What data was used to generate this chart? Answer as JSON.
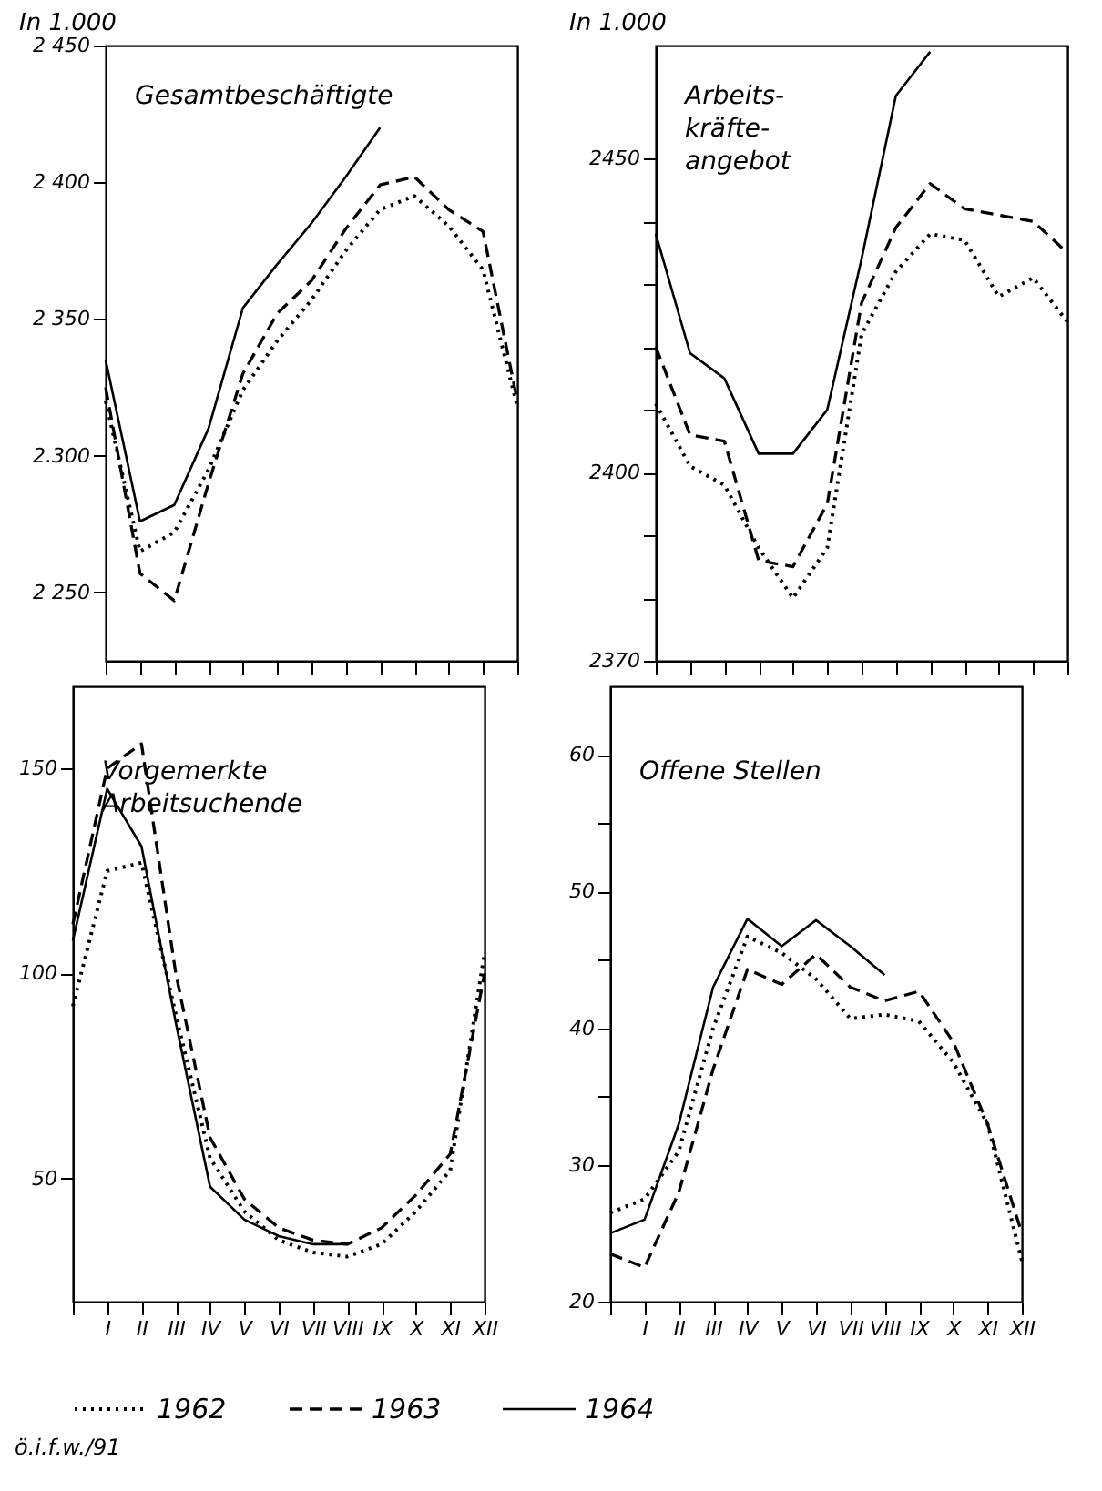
{
  "chart_data": [
    {
      "type": "line",
      "title": "Gesamtbeschäftigte",
      "ylabel": "In 1.000",
      "tick_labels": "y",
      "categories": [
        null,
        null,
        null,
        null,
        null,
        null,
        null,
        null,
        null,
        null,
        null,
        null,
        null
      ],
      "ylim": [
        2225,
        2450
      ],
      "yticks": [
        {
          "value": 2250,
          "label": "2 250"
        },
        {
          "value": 2300,
          "label": "2.300"
        },
        {
          "value": 2350,
          "label": "2 350"
        },
        {
          "value": 2400,
          "label": "2 400"
        },
        {
          "value": 2450,
          "label": "2 450"
        }
      ],
      "series": [
        {
          "color": "#000000",
          "line_style": "dotted",
          "values": [
            2320,
            2265,
            2272,
            2295,
            2324,
            2342,
            2357,
            2375,
            2390,
            2395,
            2384,
            2368,
            2318
          ]
        },
        {
          "color": "#000000",
          "line_style": "dashed",
          "values": [
            2325,
            2257,
            2247,
            2290,
            2330,
            2352,
            2364,
            2383,
            2399,
            2402,
            2390,
            2382,
            2320
          ]
        },
        {
          "color": "#000000",
          "line_style": "solid",
          "values": [
            2335,
            2276,
            2282,
            2310,
            2354,
            2370,
            2385,
            2402,
            2420,
            null,
            null,
            null,
            null
          ]
        }
      ]
    },
    {
      "type": "line",
      "title": "Arbeits-\nkräfte-\nangebot",
      "ylabel": "In 1.000",
      "tick_labels": "y",
      "categories": [
        null,
        null,
        null,
        null,
        null,
        null,
        null,
        null,
        null,
        null,
        null,
        null,
        null
      ],
      "ylim": [
        2370,
        2468
      ],
      "yticks": [
        2370,
        {
          "value": 2380,
          "label": null
        },
        {
          "value": 2390,
          "label": null
        },
        2400,
        {
          "value": 2410,
          "label": null
        },
        {
          "value": 2420,
          "label": null
        },
        {
          "value": 2430,
          "label": null
        },
        {
          "value": 2440,
          "label": null
        },
        2450
      ],
      "series": [
        {
          "color": "#000000",
          "line_style": "dotted",
          "values": [
            2411,
            2401,
            2398,
            2388,
            2380,
            2388,
            2422,
            2432,
            2438,
            2437,
            2428,
            2431,
            2424
          ]
        },
        {
          "color": "#000000",
          "line_style": "dashed",
          "values": [
            2420,
            2406,
            2405,
            2386,
            2385,
            2395,
            2427,
            2439,
            2446,
            2442,
            2441,
            2440,
            2435
          ]
        },
        {
          "color": "#000000",
          "line_style": "solid",
          "values": [
            2438,
            2419,
            2415,
            2403,
            2403,
            2410,
            2434,
            2460,
            2467,
            null,
            null,
            null,
            null
          ]
        }
      ]
    },
    {
      "type": "line",
      "title": "Vorgemerkte\nArbeitsuchende",
      "legend": "bottom",
      "annotations": [
        "ö.i.f.w./91"
      ],
      "categories": [
        null,
        "I",
        "II",
        "III",
        "IV",
        "V",
        "VI",
        "VII",
        "VIII",
        "IX",
        "X",
        "XI",
        "XII"
      ],
      "ylim": [
        20,
        170
      ],
      "yticks": [
        50,
        100,
        150
      ],
      "series": [
        {
          "name": "1962",
          "color": "#000000",
          "line_style": "dotted",
          "values": [
            92,
            125,
            127,
            90,
            55,
            42,
            35,
            32,
            31,
            34,
            42,
            52,
            105
          ]
        },
        {
          "name": "1963",
          "color": "#000000",
          "line_style": "dashed",
          "values": [
            112,
            150,
            156,
            100,
            60,
            45,
            38,
            35,
            34,
            38,
            46,
            56,
            100
          ]
        },
        {
          "name": "1964",
          "color": "#000000",
          "line_style": "solid",
          "values": [
            108,
            145,
            131,
            88,
            48,
            40,
            36,
            34,
            34,
            null,
            null,
            null,
            null
          ]
        }
      ]
    },
    {
      "type": "line",
      "title": "Offene Stellen",
      "categories": [
        null,
        "I",
        "II",
        "III",
        "IV",
        "V",
        "VI",
        "VII",
        "VIII",
        "IX",
        "X",
        "XI",
        "XII"
      ],
      "ylim": [
        20,
        65
      ],
      "yticks": [
        20,
        30,
        {
          "value": 35,
          "label": null
        },
        40,
        {
          "value": 45,
          "label": null
        },
        50,
        {
          "value": 55,
          "label": null
        },
        60
      ],
      "series": [
        {
          "color": "#000000",
          "line_style": "dotted",
          "values": [
            26.5,
            27.5,
            31,
            40,
            46.7,
            45.5,
            43.6,
            40.7,
            41,
            40.5,
            37.5,
            33,
            23
          ]
        },
        {
          "color": "#000000",
          "line_style": "dashed",
          "values": [
            23.5,
            22.5,
            28,
            37,
            44.3,
            43.2,
            45.4,
            43,
            42,
            42.7,
            39,
            33,
            25
          ]
        },
        {
          "color": "#000000",
          "line_style": "solid",
          "values": [
            25,
            26,
            33,
            43,
            48,
            46,
            47.9,
            46,
            43.9,
            null,
            null,
            null,
            null
          ]
        }
      ]
    }
  ]
}
